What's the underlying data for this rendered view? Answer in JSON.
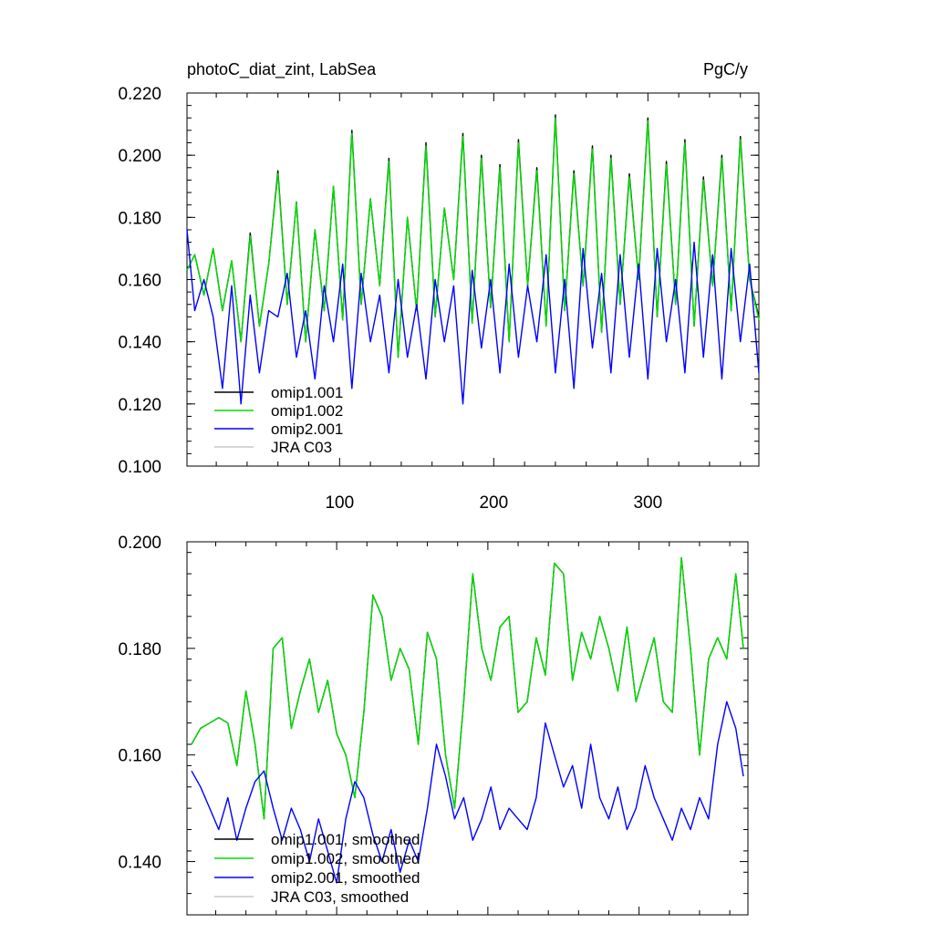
{
  "colors": {
    "omip1_001": "#000000",
    "omip1_002": "#00dd00",
    "omip2_001": "#0000ff",
    "jra_c03": "#c8c8c8"
  },
  "chart_data": [
    {
      "type": "line",
      "title": "photoC_diat_zint, LabSea",
      "units": "PgC/y",
      "xlim": [
        1,
        372
      ],
      "ylim": [
        0.1,
        0.22
      ],
      "x_ticks": [
        100,
        200,
        300
      ],
      "x_tick_labels": [
        "100",
        "200",
        "300"
      ],
      "y_ticks": [
        0.1,
        0.12,
        0.14,
        0.16,
        0.18,
        0.2,
        0.22
      ],
      "y_tick_labels": [
        "0.100",
        "0.120",
        "0.140",
        "0.160",
        "0.180",
        "0.200",
        "0.220"
      ],
      "legend_position": "bottom-left",
      "series": [
        {
          "name": "omip1.001",
          "color_key": "omip1_001",
          "x": [
            1,
            6,
            12,
            18,
            24,
            30,
            36,
            42,
            48,
            54,
            60,
            66,
            72,
            78,
            84,
            90,
            96,
            102,
            108,
            114,
            120,
            126,
            132,
            138,
            144,
            150,
            156,
            162,
            168,
            174,
            180,
            186,
            192,
            198,
            204,
            210,
            216,
            222,
            228,
            234,
            240,
            246,
            252,
            258,
            264,
            270,
            276,
            282,
            288,
            294,
            300,
            306,
            312,
            318,
            324,
            330,
            336,
            342,
            348,
            354,
            360,
            366,
            372
          ],
          "values": [
            0.163,
            0.168,
            0.155,
            0.17,
            0.15,
            0.166,
            0.14,
            0.175,
            0.145,
            0.165,
            0.195,
            0.152,
            0.185,
            0.14,
            0.176,
            0.15,
            0.19,
            0.147,
            0.208,
            0.152,
            0.186,
            0.158,
            0.199,
            0.135,
            0.18,
            0.15,
            0.204,
            0.148,
            0.183,
            0.16,
            0.207,
            0.146,
            0.2,
            0.151,
            0.197,
            0.14,
            0.205,
            0.158,
            0.196,
            0.145,
            0.213,
            0.15,
            0.195,
            0.158,
            0.203,
            0.143,
            0.2,
            0.152,
            0.194,
            0.16,
            0.212,
            0.148,
            0.198,
            0.152,
            0.205,
            0.145,
            0.193,
            0.158,
            0.2,
            0.15,
            0.206,
            0.16,
            0.148
          ]
        },
        {
          "name": "omip1.002",
          "color_key": "omip1_002",
          "x": [
            1,
            6,
            12,
            18,
            24,
            30,
            36,
            42,
            48,
            54,
            60,
            66,
            72,
            78,
            84,
            90,
            96,
            102,
            108,
            114,
            120,
            126,
            132,
            138,
            144,
            150,
            156,
            162,
            168,
            174,
            180,
            186,
            192,
            198,
            204,
            210,
            216,
            222,
            228,
            234,
            240,
            246,
            252,
            258,
            264,
            270,
            276,
            282,
            288,
            294,
            300,
            306,
            312,
            318,
            324,
            330,
            336,
            342,
            348,
            354,
            360,
            366,
            372
          ],
          "values": [
            0.163,
            0.168,
            0.155,
            0.17,
            0.15,
            0.166,
            0.14,
            0.174,
            0.145,
            0.165,
            0.194,
            0.152,
            0.185,
            0.14,
            0.176,
            0.15,
            0.19,
            0.147,
            0.207,
            0.152,
            0.186,
            0.158,
            0.198,
            0.135,
            0.18,
            0.15,
            0.203,
            0.148,
            0.183,
            0.16,
            0.206,
            0.146,
            0.199,
            0.151,
            0.196,
            0.14,
            0.204,
            0.158,
            0.195,
            0.145,
            0.212,
            0.15,
            0.194,
            0.158,
            0.202,
            0.143,
            0.199,
            0.152,
            0.193,
            0.16,
            0.211,
            0.148,
            0.197,
            0.152,
            0.204,
            0.145,
            0.192,
            0.158,
            0.199,
            0.15,
            0.205,
            0.16,
            0.147
          ]
        },
        {
          "name": "omip2.001",
          "color_key": "omip2_001",
          "x": [
            1,
            6,
            12,
            18,
            24,
            30,
            36,
            42,
            48,
            54,
            60,
            66,
            72,
            78,
            84,
            90,
            96,
            102,
            108,
            114,
            120,
            126,
            132,
            138,
            144,
            150,
            156,
            162,
            168,
            174,
            180,
            186,
            192,
            198,
            204,
            210,
            216,
            222,
            228,
            234,
            240,
            246,
            252,
            258,
            264,
            270,
            276,
            282,
            288,
            294,
            300,
            306,
            312,
            318,
            324,
            330,
            336,
            342,
            348,
            354,
            360,
            366,
            372
          ],
          "values": [
            0.176,
            0.15,
            0.16,
            0.148,
            0.125,
            0.158,
            0.12,
            0.155,
            0.13,
            0.15,
            0.148,
            0.162,
            0.135,
            0.15,
            0.128,
            0.158,
            0.14,
            0.165,
            0.125,
            0.162,
            0.14,
            0.155,
            0.13,
            0.16,
            0.135,
            0.152,
            0.128,
            0.16,
            0.14,
            0.158,
            0.12,
            0.163,
            0.138,
            0.16,
            0.13,
            0.165,
            0.135,
            0.158,
            0.14,
            0.168,
            0.13,
            0.16,
            0.125,
            0.17,
            0.138,
            0.162,
            0.13,
            0.168,
            0.135,
            0.165,
            0.128,
            0.17,
            0.14,
            0.16,
            0.13,
            0.172,
            0.135,
            0.168,
            0.128,
            0.17,
            0.14,
            0.165,
            0.13
          ]
        },
        {
          "name": "JRA C03",
          "color_key": "jra_c03",
          "x": [],
          "values": []
        }
      ]
    },
    {
      "type": "line",
      "xlim": [
        1,
        372
      ],
      "ylim": [
        0.13,
        0.2
      ],
      "x_ticks": [
        100,
        200,
        300
      ],
      "y_ticks": [
        0.14,
        0.16,
        0.18,
        0.2
      ],
      "y_tick_labels": [
        "0.140",
        "0.160",
        "0.180",
        "0.200"
      ],
      "legend_position": "bottom-left",
      "series": [
        {
          "name": "omip1.001, smoothed",
          "color_key": "omip1_001",
          "x": [
            4,
            10,
            16,
            22,
            28,
            34,
            40,
            46,
            52,
            58,
            64,
            70,
            76,
            82,
            88,
            94,
            100,
            106,
            112,
            118,
            124,
            130,
            136,
            142,
            148,
            154,
            160,
            166,
            172,
            178,
            184,
            190,
            196,
            202,
            208,
            214,
            220,
            226,
            232,
            238,
            244,
            250,
            256,
            262,
            268,
            274,
            280,
            286,
            292,
            298,
            304,
            310,
            316,
            322,
            328,
            334,
            340,
            346,
            352,
            358,
            364,
            369
          ],
          "values": [
            0.162,
            0.165,
            0.166,
            0.167,
            0.166,
            0.158,
            0.172,
            0.162,
            0.148,
            0.18,
            0.182,
            0.165,
            0.172,
            0.178,
            0.168,
            0.174,
            0.164,
            0.16,
            0.152,
            0.168,
            0.19,
            0.186,
            0.174,
            0.18,
            0.176,
            0.162,
            0.183,
            0.178,
            0.16,
            0.15,
            0.17,
            0.194,
            0.18,
            0.174,
            0.184,
            0.186,
            0.168,
            0.17,
            0.182,
            0.175,
            0.196,
            0.194,
            0.174,
            0.183,
            0.178,
            0.186,
            0.18,
            0.172,
            0.184,
            0.17,
            0.176,
            0.182,
            0.17,
            0.168,
            0.197,
            0.18,
            0.16,
            0.178,
            0.182,
            0.178,
            0.194,
            0.18
          ]
        },
        {
          "name": "omip1.002, smoothed",
          "color_key": "omip1_002",
          "x": [
            4,
            10,
            16,
            22,
            28,
            34,
            40,
            46,
            52,
            58,
            64,
            70,
            76,
            82,
            88,
            94,
            100,
            106,
            112,
            118,
            124,
            130,
            136,
            142,
            148,
            154,
            160,
            166,
            172,
            178,
            184,
            190,
            196,
            202,
            208,
            214,
            220,
            226,
            232,
            238,
            244,
            250,
            256,
            262,
            268,
            274,
            280,
            286,
            292,
            298,
            304,
            310,
            316,
            322,
            328,
            334,
            340,
            346,
            352,
            358,
            364,
            369
          ],
          "values": [
            0.162,
            0.165,
            0.166,
            0.167,
            0.166,
            0.158,
            0.172,
            0.162,
            0.148,
            0.18,
            0.182,
            0.165,
            0.172,
            0.178,
            0.168,
            0.174,
            0.164,
            0.16,
            0.152,
            0.168,
            0.19,
            0.186,
            0.174,
            0.18,
            0.176,
            0.162,
            0.183,
            0.178,
            0.16,
            0.15,
            0.17,
            0.194,
            0.18,
            0.174,
            0.184,
            0.186,
            0.168,
            0.17,
            0.182,
            0.175,
            0.196,
            0.194,
            0.174,
            0.183,
            0.178,
            0.186,
            0.18,
            0.172,
            0.184,
            0.17,
            0.176,
            0.182,
            0.17,
            0.168,
            0.197,
            0.18,
            0.16,
            0.178,
            0.182,
            0.178,
            0.194,
            0.18
          ]
        },
        {
          "name": "omip2.001, smoothed",
          "color_key": "omip2_001",
          "x": [
            4,
            10,
            16,
            22,
            28,
            34,
            40,
            46,
            52,
            58,
            64,
            70,
            76,
            82,
            88,
            94,
            100,
            106,
            112,
            118,
            124,
            130,
            136,
            142,
            148,
            154,
            160,
            166,
            172,
            178,
            184,
            190,
            196,
            202,
            208,
            214,
            220,
            226,
            232,
            238,
            244,
            250,
            256,
            262,
            268,
            274,
            280,
            286,
            292,
            298,
            304,
            310,
            316,
            322,
            328,
            334,
            340,
            346,
            352,
            358,
            364,
            369
          ],
          "values": [
            0.157,
            0.154,
            0.15,
            0.146,
            0.152,
            0.144,
            0.15,
            0.155,
            0.157,
            0.15,
            0.144,
            0.15,
            0.146,
            0.14,
            0.148,
            0.142,
            0.136,
            0.148,
            0.155,
            0.152,
            0.145,
            0.14,
            0.146,
            0.138,
            0.144,
            0.14,
            0.15,
            0.162,
            0.156,
            0.148,
            0.152,
            0.144,
            0.148,
            0.154,
            0.146,
            0.15,
            0.148,
            0.146,
            0.152,
            0.166,
            0.16,
            0.154,
            0.158,
            0.15,
            0.162,
            0.152,
            0.148,
            0.154,
            0.146,
            0.15,
            0.158,
            0.152,
            0.148,
            0.144,
            0.15,
            0.146,
            0.152,
            0.148,
            0.162,
            0.17,
            0.165,
            0.156
          ]
        },
        {
          "name": "JRA C03, smoothed",
          "color_key": "jra_c03",
          "x": [],
          "values": []
        }
      ]
    }
  ]
}
